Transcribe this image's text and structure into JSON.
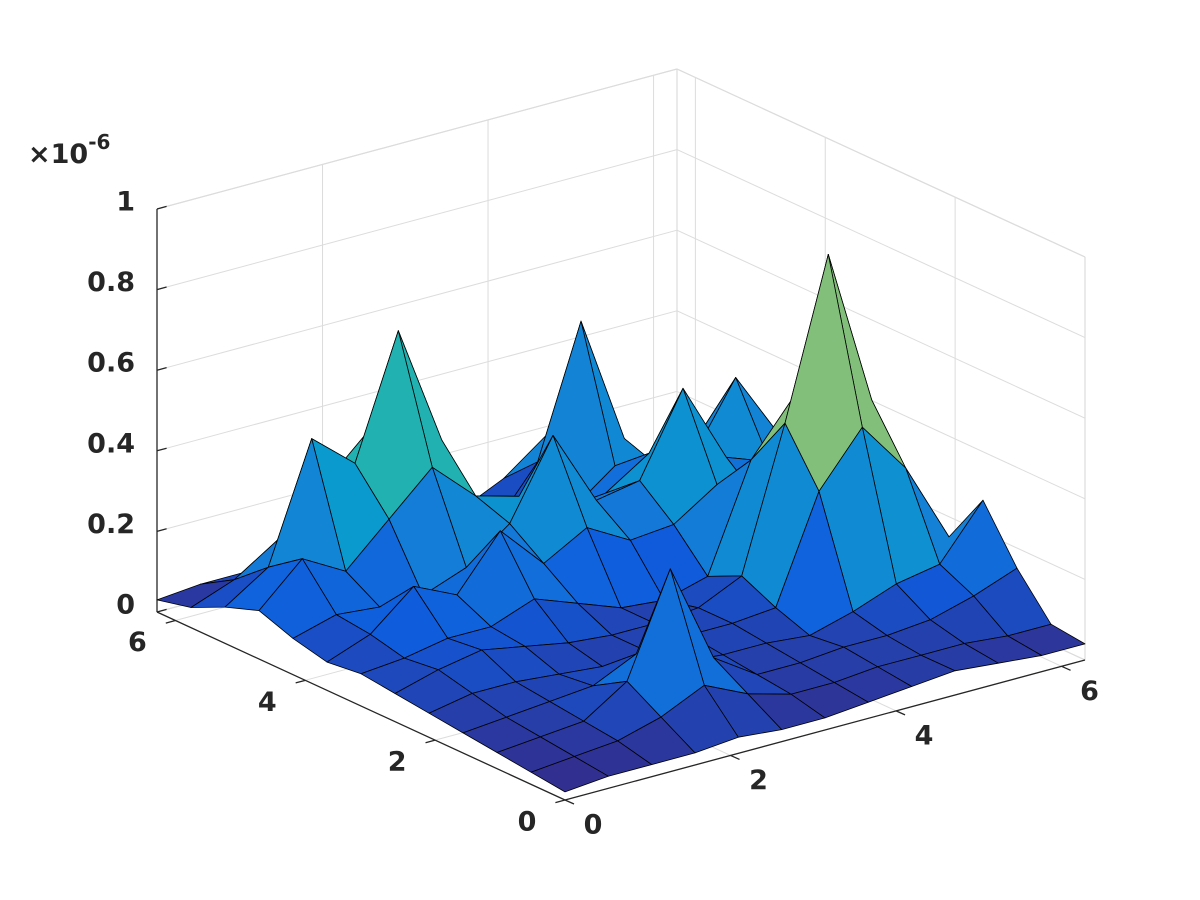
{
  "chart_data": {
    "type": "surface",
    "x": [
      0,
      0.5236,
      1.0472,
      1.5708,
      2.0944,
      2.618,
      3.1416,
      3.6652,
      4.1888,
      4.7124,
      5.236,
      5.7596,
      6.2832
    ],
    "y": [
      0,
      0.5236,
      1.0472,
      1.5708,
      2.0944,
      2.618,
      3.1416,
      3.6652,
      4.1888,
      4.7124,
      5.236,
      5.7596,
      6.2832
    ],
    "z": [
      [
        0.02,
        0.03,
        0.03,
        0.03,
        0.04,
        0.03,
        0.03,
        0.04,
        0.05,
        0.06,
        0.05,
        0.04,
        0.04
      ],
      [
        0.03,
        0.04,
        0.05,
        0.08,
        0.13,
        0.08,
        0.05,
        0.05,
        0.06,
        0.06,
        0.06,
        0.05,
        0.05
      ],
      [
        0.04,
        0.05,
        0.06,
        0.13,
        0.38,
        0.13,
        0.06,
        0.06,
        0.07,
        0.07,
        0.08,
        0.11,
        0.15
      ],
      [
        0.05,
        0.06,
        0.07,
        0.08,
        0.13,
        0.08,
        0.07,
        0.07,
        0.06,
        0.09,
        0.13,
        0.15,
        0.28
      ],
      [
        0.06,
        0.08,
        0.08,
        0.07,
        0.06,
        0.07,
        0.08,
        0.08,
        0.09,
        0.35,
        0.48,
        0.35,
        0.15
      ],
      [
        0.07,
        0.1,
        0.12,
        0.1,
        0.08,
        0.07,
        0.07,
        0.08,
        0.13,
        0.48,
        0.87,
        0.48,
        0.13
      ],
      [
        0.08,
        0.09,
        0.11,
        0.11,
        0.15,
        0.11,
        0.07,
        0.06,
        0.09,
        0.35,
        0.48,
        0.35,
        0.09
      ],
      [
        0.07,
        0.11,
        0.2,
        0.15,
        0.28,
        0.17,
        0.23,
        0.17,
        0.18,
        0.25,
        0.18,
        0.09,
        0.05
      ],
      [
        0.09,
        0.12,
        0.11,
        0.11,
        0.15,
        0.23,
        0.42,
        0.23,
        0.25,
        0.45,
        0.25,
        0.21,
        0.15
      ],
      [
        0.12,
        0.22,
        0.16,
        0.26,
        0.36,
        0.26,
        0.23,
        0.17,
        0.18,
        0.25,
        0.21,
        0.38,
        0.21
      ],
      [
        0.09,
        0.16,
        0.45,
        0.36,
        0.66,
        0.36,
        0.1,
        0.05,
        0.1,
        0.18,
        0.15,
        0.21,
        0.15
      ],
      [
        0.05,
        0.09,
        0.16,
        0.26,
        0.36,
        0.26,
        0.07,
        0.05,
        0.18,
        0.5,
        0.18,
        0.06,
        0.05
      ],
      [
        0.03,
        0.04,
        0.04,
        0.07,
        0.1,
        0.07,
        0.05,
        0.05,
        0.1,
        0.18,
        0.1,
        0.05,
        0.04
      ]
    ],
    "xlim": [
      0,
      6.2832
    ],
    "ylim": [
      0,
      6.2832
    ],
    "zlim": [
      0,
      1
    ],
    "xticks": [
      0,
      2,
      4,
      6
    ],
    "yticks": [
      0,
      2,
      4,
      6
    ],
    "zticks": [
      0,
      0.2,
      0.4,
      0.6,
      0.8,
      1
    ],
    "z_multiplier": "×10",
    "z_exponent": "-6",
    "grid": true,
    "colormap": [
      "#352a87",
      "#0f5cdd",
      "#1481d6",
      "#06a4ca",
      "#2eb7a4",
      "#87bf77",
      "#d1bb59",
      "#fec832",
      "#f9fb0e"
    ],
    "edge_color": "#000000"
  }
}
